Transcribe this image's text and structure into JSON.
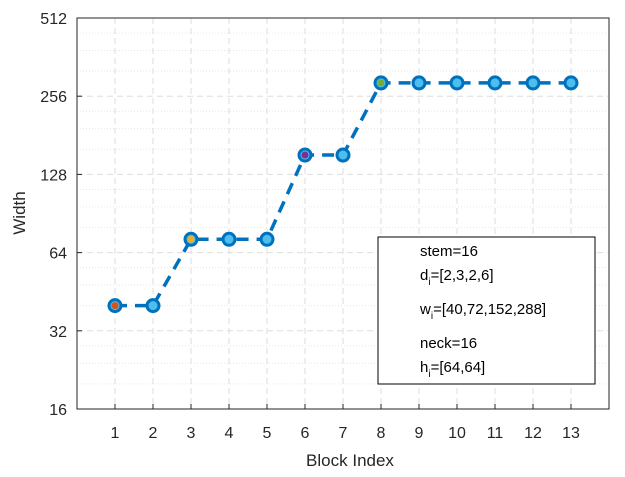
{
  "chart_data": {
    "type": "line",
    "xlabel": "Block Index",
    "ylabel": "Width",
    "x": [
      1,
      2,
      3,
      4,
      5,
      6,
      7,
      8,
      9,
      10,
      11,
      12,
      13
    ],
    "xlim": [
      0,
      14
    ],
    "ylim": [
      16,
      512
    ],
    "yscale": "log2",
    "yticks": [
      16,
      32,
      64,
      128,
      256,
      512
    ],
    "grid": true,
    "series": [
      {
        "values": [
          40,
          40,
          72,
          72,
          72,
          152,
          152,
          288,
          288,
          288,
          288,
          288,
          288
        ]
      }
    ],
    "stage_start_markers": [
      {
        "x": 1,
        "y": 40,
        "color": "#D95319"
      },
      {
        "x": 3,
        "y": 72,
        "color": "#EDB120"
      },
      {
        "x": 6,
        "y": 152,
        "color": "#7E2F8E"
      },
      {
        "x": 8,
        "y": 288,
        "color": "#77AC30"
      }
    ],
    "colors": {
      "line": "#0072BD",
      "marker_fill": "#4DBEEE",
      "marker_edge": "#0072BD"
    },
    "annotation": {
      "lines": [
        {
          "text": "stem=16"
        },
        {
          "main": "d",
          "sub": "i",
          "rest": "=[2,3,2,6]"
        },
        {
          "main": "w",
          "sub": "i",
          "rest": "=[40,72,152,288]"
        },
        {
          "text": "neck=16"
        },
        {
          "main": "h",
          "sub": "i",
          "rest": "=[64,64]"
        }
      ]
    }
  }
}
